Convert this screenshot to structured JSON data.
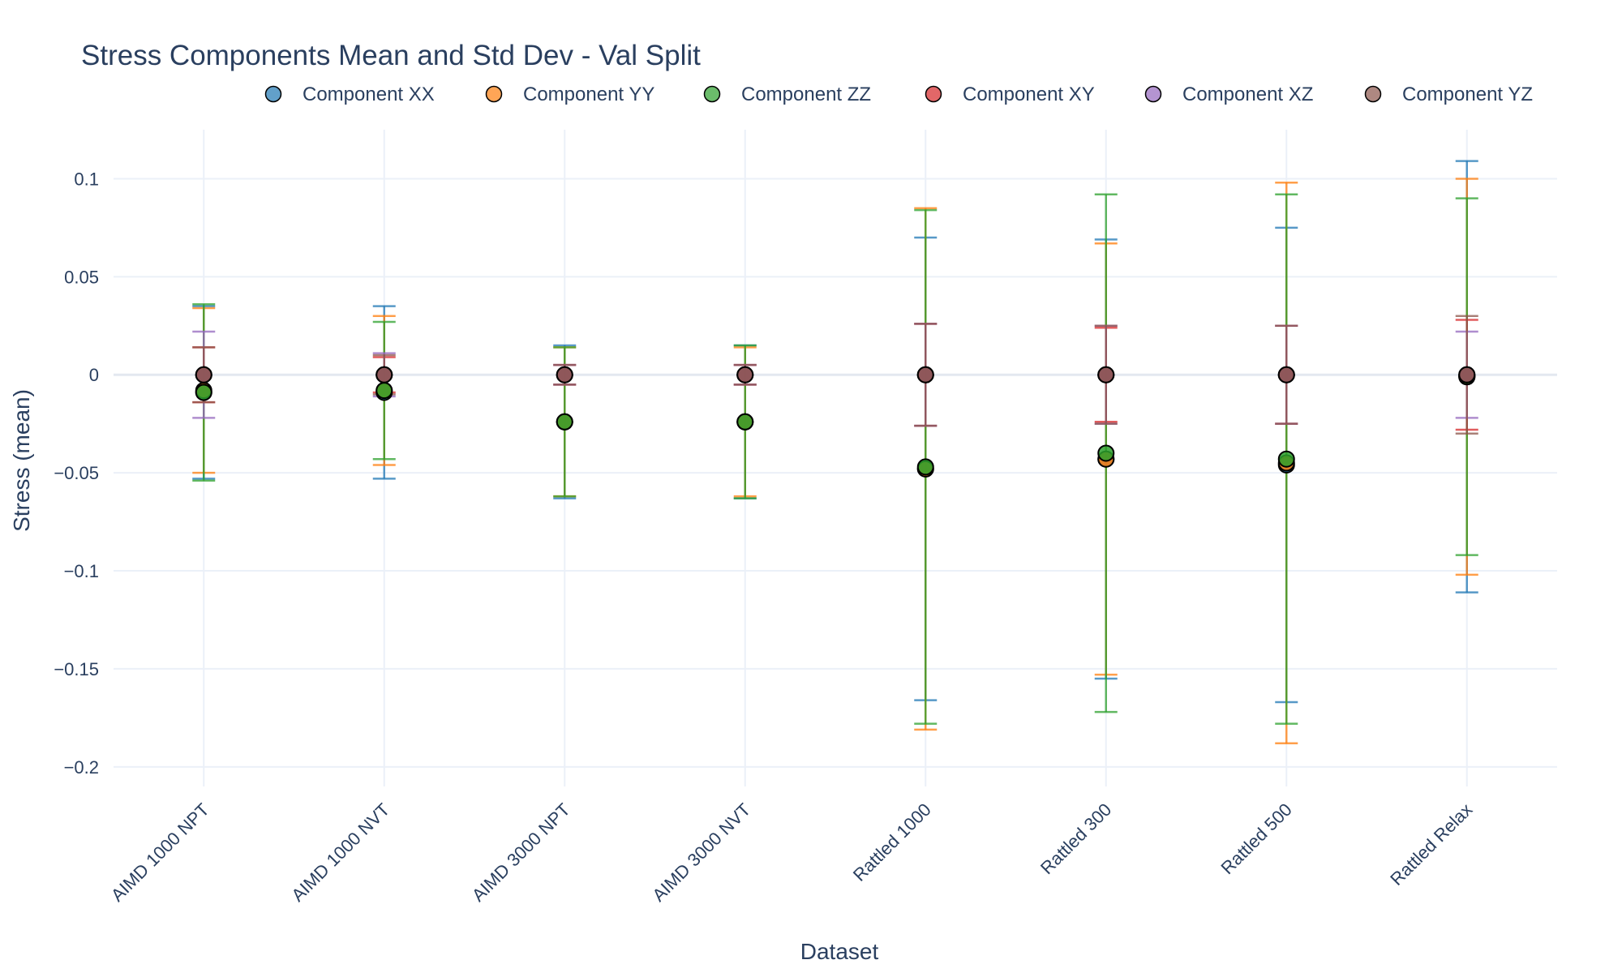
{
  "chart_data": {
    "type": "scatter",
    "title": "Stress Components Mean and Std Dev - Val Split",
    "xlabel": "Dataset",
    "ylabel": "Stress (mean)",
    "categories": [
      "AIMD 1000 NPT",
      "AIMD 1000 NVT",
      "AIMD 3000 NPT",
      "AIMD 3000 NVT",
      "Rattled 1000",
      "Rattled 300",
      "Rattled 500",
      "Rattled Relax"
    ],
    "ylim": [
      -0.21,
      0.125
    ],
    "yticks": [
      0.1,
      0.05,
      0,
      -0.05,
      -0.1,
      -0.15,
      -0.2
    ],
    "ytick_labels": [
      "0.1",
      "0.05",
      "0",
      "−0.05",
      "−0.1",
      "−0.15",
      "−0.2"
    ],
    "grid": true,
    "legend_position": "top, horizontal",
    "series": [
      {
        "name": "Component XX",
        "color": "#1f77b4",
        "means": [
          -0.009,
          -0.009,
          -0.024,
          -0.024,
          -0.048,
          -0.043,
          -0.046,
          -0.001
        ],
        "stds": [
          0.044,
          0.044,
          0.039,
          0.039,
          0.118,
          0.112,
          0.121,
          0.11
        ]
      },
      {
        "name": "Component YY",
        "color": "#ff7f0e",
        "means": [
          -0.008,
          -0.008,
          -0.024,
          -0.024,
          -0.048,
          -0.043,
          -0.045,
          -0.001
        ],
        "stds": [
          0.042,
          0.038,
          0.038,
          0.038,
          0.133,
          0.11,
          0.143,
          0.101
        ]
      },
      {
        "name": "Component ZZ",
        "color": "#2ca02c",
        "means": [
          -0.009,
          -0.008,
          -0.024,
          -0.024,
          -0.047,
          -0.04,
          -0.043,
          -0.001
        ],
        "stds": [
          0.045,
          0.035,
          0.038,
          0.039,
          0.131,
          0.132,
          0.135,
          0.091
        ]
      },
      {
        "name": "Component XY",
        "color": "#d62728",
        "means": [
          0,
          0,
          0,
          0,
          0,
          0,
          0,
          0
        ],
        "stds": [
          0.014,
          0.009,
          0.005,
          0.005,
          0.026,
          0.024,
          0.025,
          0.028
        ]
      },
      {
        "name": "Component XZ",
        "color": "#9467bd",
        "means": [
          0,
          0,
          0,
          0,
          0,
          0,
          0,
          0
        ],
        "stds": [
          0.022,
          0.011,
          0.005,
          0.005,
          0.026,
          0.025,
          0.025,
          0.022
        ]
      },
      {
        "name": "Component YZ",
        "color": "#8c564b",
        "means": [
          0,
          0,
          0,
          0,
          0,
          0,
          0,
          0
        ],
        "stds": [
          0.014,
          0.01,
          0.005,
          0.005,
          0.026,
          0.025,
          0.025,
          0.03
        ]
      }
    ]
  }
}
